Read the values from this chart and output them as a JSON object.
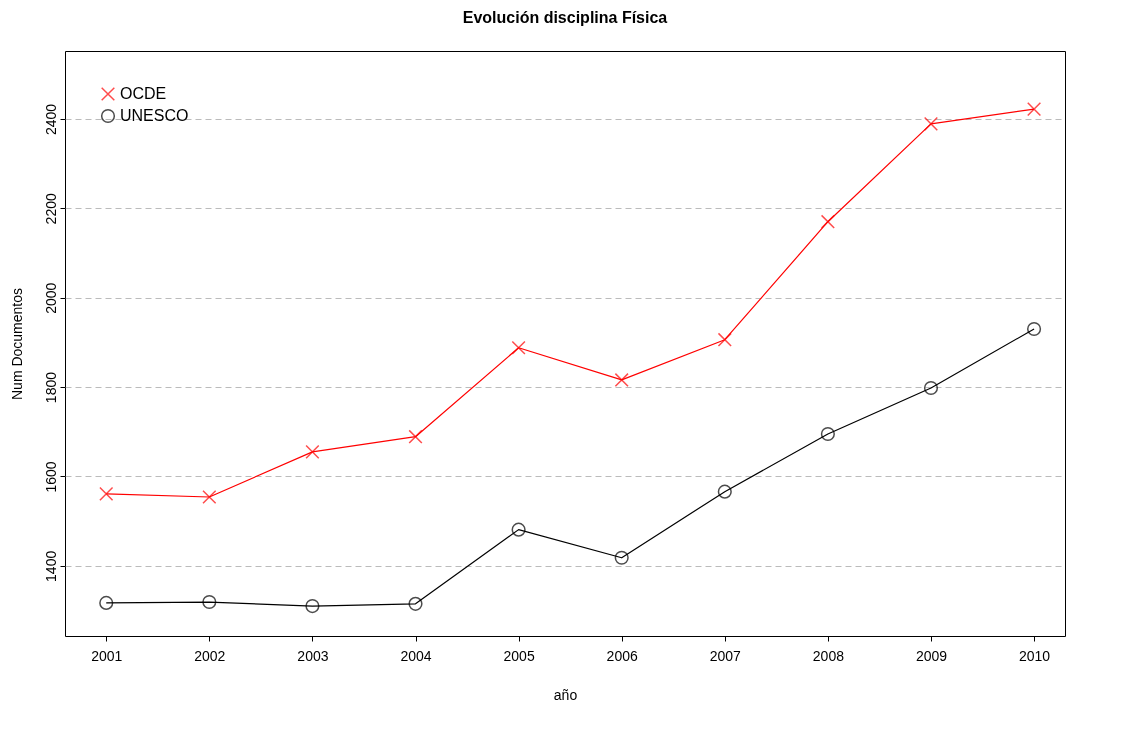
{
  "chart_data": {
    "type": "line",
    "title": "Evolución disciplina Física",
    "xlabel": "año",
    "ylabel": "Num Documentos",
    "x": [
      2001,
      2002,
      2003,
      2004,
      2005,
      2006,
      2007,
      2008,
      2009,
      2010
    ],
    "series": [
      {
        "name": "OCDE",
        "color": "#ff0000",
        "marker": "cross",
        "values": [
          1561,
          1554,
          1655,
          1689,
          1888,
          1816,
          1906,
          2170,
          2389,
          2422
        ]
      },
      {
        "name": "UNESCO",
        "color": "#000000",
        "marker": "circle",
        "values": [
          1317,
          1319,
          1310,
          1315,
          1481,
          1418,
          1566,
          1695,
          1798,
          1930
        ]
      }
    ],
    "xlim": [
      2000.6,
      2010.3
    ],
    "xticks": [
      2001,
      2002,
      2003,
      2004,
      2005,
      2006,
      2007,
      2008,
      2009,
      2010
    ],
    "ylim": [
      1243,
      2552
    ],
    "yticks": [
      1400,
      1600,
      1800,
      2000,
      2200,
      2400
    ],
    "grid": "y",
    "legend": "top left",
    "line_style": "solid"
  }
}
